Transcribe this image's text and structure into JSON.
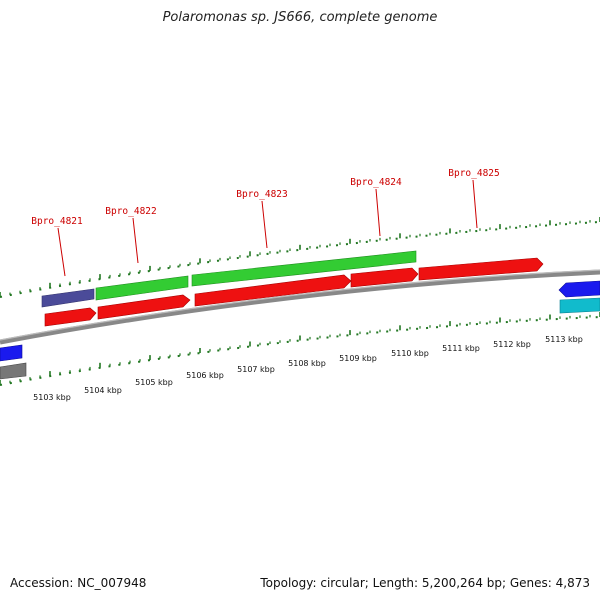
{
  "title": "Polaromonas sp. JS666, complete genome",
  "footer": {
    "accession": "Accession: NC_007948",
    "summary": "Topology: circular; Length: 5,200,264 bp; Genes: 4,873"
  },
  "colors": {
    "red": "#ee1111",
    "green": "#33cc33",
    "slate": "#4b4b99",
    "blue": "#1a1aee",
    "cyan": "#11bbcc",
    "gray": "#777777",
    "tick": "#227722",
    "label": "#cc0000"
  },
  "ruler": {
    "labels": [
      "5103 kbp",
      "5104 kbp",
      "5105 kbp",
      "5106 kbp",
      "5107 kbp",
      "5108 kbp",
      "5109 kbp",
      "5110 kbp",
      "5111 kbp",
      "5112 kbp",
      "5113 kbp"
    ]
  },
  "genes": [
    {
      "label": "Bpro_4821"
    },
    {
      "label": "Bpro_4822"
    },
    {
      "label": "Bpro_4823"
    },
    {
      "label": "Bpro_4824"
    },
    {
      "label": "Bpro_4825"
    }
  ]
}
